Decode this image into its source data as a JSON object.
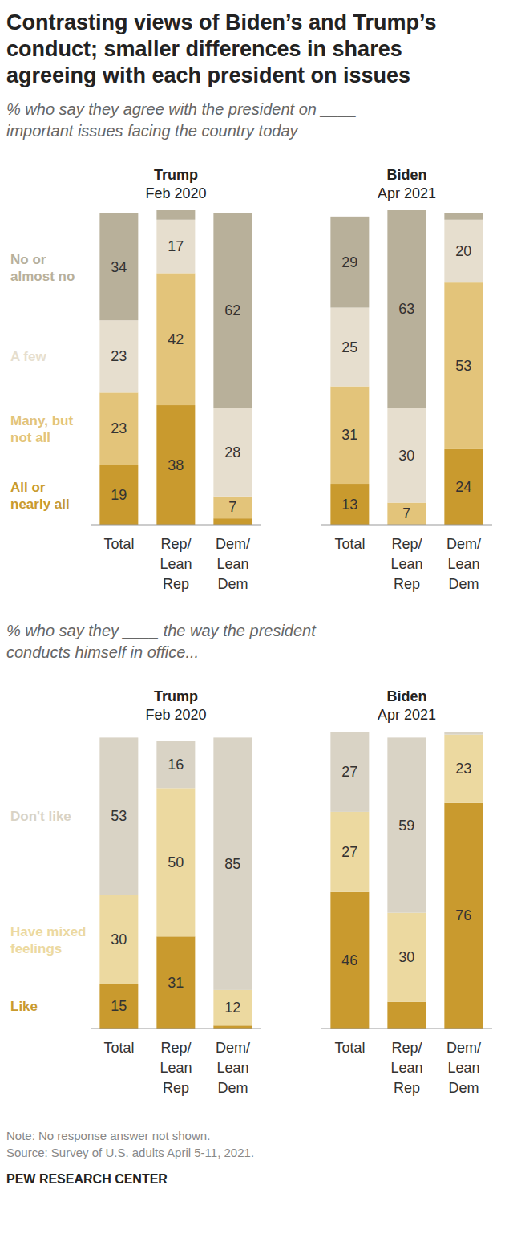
{
  "title": "Contrasting views of Biden’s and Trump’s conduct; smaller differences in shares agreeing with each president on issues",
  "note": "Note: No response answer not shown.",
  "source": "Source: Survey of U.S. adults April 5-11, 2021.",
  "credit": "PEW RESEARCH CENTER",
  "chart_data": [
    {
      "type": "bar",
      "stacked": true,
      "data_labels": true,
      "tick_labels": "x",
      "title": "% who say they agree with the president on ____ important issues facing the country today",
      "ylim": [
        0,
        100
      ],
      "groups": [
        {
          "title": "Trump",
          "subtitle": "Feb 2020",
          "categories": [
            "Total",
            "Rep/ Lean Rep",
            "Dem/ Lean Dem"
          ]
        },
        {
          "title": "Biden",
          "subtitle": "Apr 2021",
          "categories": [
            "Total",
            "Rep/ Lean Rep",
            "Dem/ Lean Dem"
          ]
        }
      ],
      "series": [
        {
          "name": "All or nearly all",
          "color": "#c99a2e",
          "values": [
            19,
            38,
            2,
            13,
            0,
            24
          ],
          "value_labels": [
            "19",
            "38",
            null,
            "13",
            null,
            "24"
          ]
        },
        {
          "name": "Many, but not all",
          "color": "#e3c47a",
          "values": [
            23,
            42,
            7,
            31,
            7,
            53
          ],
          "value_labels": [
            "23",
            "42",
            "7",
            "31",
            "7",
            "53"
          ]
        },
        {
          "name": "A few",
          "color": "#e6dece",
          "values": [
            23,
            17,
            28,
            25,
            30,
            20
          ],
          "value_labels": [
            "23",
            "17",
            "28",
            "25",
            "30",
            "20"
          ]
        },
        {
          "name": "No or almost no",
          "color": "#b8b09a",
          "values": [
            34,
            3,
            62,
            29,
            63,
            2
          ],
          "value_labels": [
            "34",
            null,
            "62",
            "29",
            "63",
            null
          ]
        }
      ]
    },
    {
      "type": "bar",
      "stacked": true,
      "data_labels": true,
      "tick_labels": "x",
      "title": "% who say they ____ the way the president conducts himself in office...",
      "ylim": [
        0,
        100
      ],
      "groups": [
        {
          "title": "Trump",
          "subtitle": "Feb 2020",
          "categories": [
            "Total",
            "Rep/ Lean Rep",
            "Dem/ Lean Dem"
          ]
        },
        {
          "title": "Biden",
          "subtitle": "Apr 2021",
          "categories": [
            "Total",
            "Rep/ Lean Rep",
            "Dem/ Lean Dem"
          ]
        }
      ],
      "series": [
        {
          "name": "Like",
          "color": "#c99a2e",
          "values": [
            15,
            31,
            1,
            46,
            9,
            76
          ],
          "value_labels": [
            "15",
            "31",
            null,
            "46",
            null,
            "76"
          ]
        },
        {
          "name": "Have mixed feelings",
          "color": "#ecd9a0",
          "values": [
            30,
            50,
            12,
            27,
            30,
            23
          ],
          "value_labels": [
            "30",
            "50",
            "12",
            "27",
            "30",
            "23"
          ]
        },
        {
          "name": "Don't like",
          "color": "#d9d3c5",
          "values": [
            53,
            16,
            85,
            27,
            59,
            1
          ],
          "value_labels": [
            "53",
            "16",
            "85",
            "27",
            "59",
            null
          ]
        }
      ]
    }
  ]
}
